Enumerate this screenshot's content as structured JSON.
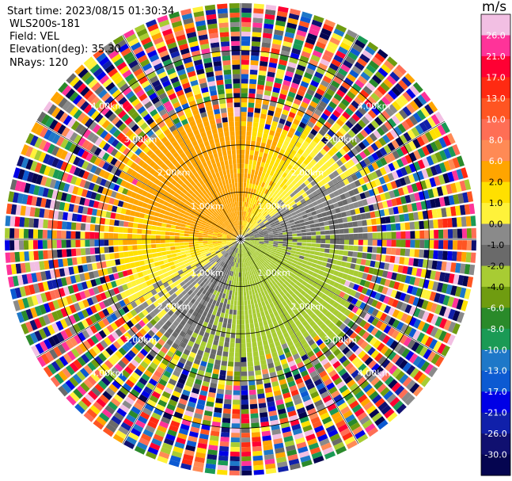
{
  "info": {
    "start_time": "Start time: 2023/08/15 01:30:34",
    "instrument": "WLS200s-181",
    "field": "Field: VEL",
    "elevation": "Elevation(deg): 35.30",
    "nrays": "NRays: 120"
  },
  "chart_data": {
    "type": "heatmap",
    "projection": "polar",
    "field": "VEL",
    "n_rays": 120,
    "range_rings_km": [
      1,
      2,
      3,
      4
    ],
    "max_range_km": 5,
    "ring_label_suffix": ".00km",
    "colorbar": {
      "unit": "m/s",
      "ticks": [
        "26.0",
        "21.0",
        "17.0",
        "13.0",
        "10.0",
        "8.0",
        "6.0",
        "2.0",
        "1.0",
        "0.0",
        "-1.0",
        "-2.0",
        "-4.0",
        "-6.0",
        "-8.0",
        "-10.0",
        "-13.0",
        "-17.0",
        "-21.0",
        "-26.0",
        "-30.0"
      ],
      "colors": [
        "#f2bfe3",
        "#ff3399",
        "#ff0033",
        "#ff2a12",
        "#ff5522",
        "#ff6e55",
        "#ff8a55",
        "#ffa500",
        "#ffe000",
        "#fff23a",
        "#8a8a8a",
        "#6a6a6a",
        "#a8cc33",
        "#6f9c10",
        "#2a8a2a",
        "#1a9a55",
        "#1e78c8",
        "#0c5ad2",
        "#0000e6",
        "#1020aa",
        "#101070",
        "#050550"
      ]
    }
  }
}
